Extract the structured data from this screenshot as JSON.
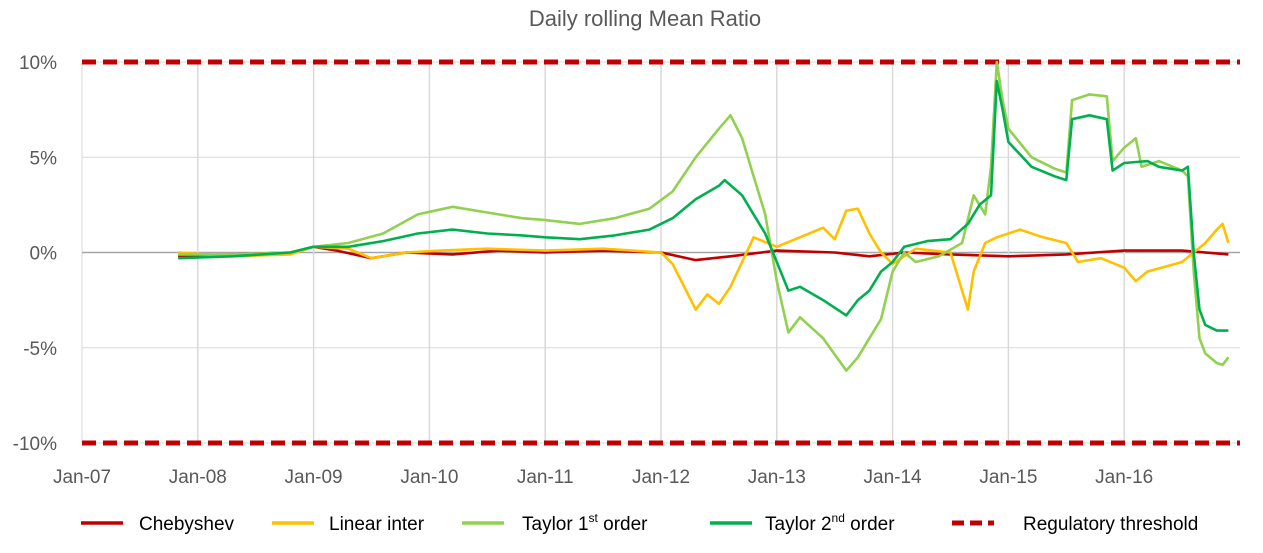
{
  "chart_data": {
    "type": "line",
    "title": "Daily rolling Mean Ratio",
    "xlabel": "",
    "ylabel": "",
    "x_range": [
      2007.0,
      2017.0
    ],
    "ylim": [
      -10,
      10
    ],
    "x_ticks": [
      {
        "label": "Jan-07",
        "value": 2007.0
      },
      {
        "label": "Jan-08",
        "value": 2008.0
      },
      {
        "label": "Jan-09",
        "value": 2009.0
      },
      {
        "label": "Jan-10",
        "value": 2010.0
      },
      {
        "label": "Jan-11",
        "value": 2011.0
      },
      {
        "label": "Jan-12",
        "value": 2012.0
      },
      {
        "label": "Jan-13",
        "value": 2013.0
      },
      {
        "label": "Jan-14",
        "value": 2014.0
      },
      {
        "label": "Jan-15",
        "value": 2015.0
      },
      {
        "label": "Jan-16",
        "value": 2016.0
      }
    ],
    "y_ticks": [
      {
        "label": "10%",
        "value": 10
      },
      {
        "label": "5%",
        "value": 5
      },
      {
        "label": "0%",
        "value": 0
      },
      {
        "label": "-5%",
        "value": -5
      },
      {
        "label": "-10%",
        "value": -10
      }
    ],
    "grid": true,
    "legend_position": "bottom",
    "series": [
      {
        "name": "Chebyshev",
        "color": "#c00000",
        "points": [
          [
            2007.83,
            -0.2
          ],
          [
            2008.3,
            -0.1
          ],
          [
            2008.8,
            0.0
          ],
          [
            2009.0,
            0.3
          ],
          [
            2009.2,
            0.1
          ],
          [
            2009.5,
            -0.3
          ],
          [
            2009.8,
            0.0
          ],
          [
            2010.2,
            -0.1
          ],
          [
            2010.6,
            0.1
          ],
          [
            2011.0,
            0.0
          ],
          [
            2011.5,
            0.1
          ],
          [
            2012.0,
            0.0
          ],
          [
            2012.3,
            -0.4
          ],
          [
            2012.6,
            -0.2
          ],
          [
            2013.0,
            0.1
          ],
          [
            2013.5,
            0.0
          ],
          [
            2013.8,
            -0.2
          ],
          [
            2014.1,
            0.0
          ],
          [
            2014.5,
            -0.1
          ],
          [
            2015.0,
            -0.2
          ],
          [
            2015.5,
            -0.1
          ],
          [
            2016.0,
            0.1
          ],
          [
            2016.5,
            0.1
          ],
          [
            2016.9,
            -0.1
          ]
        ]
      },
      {
        "name": "Linear inter",
        "color": "#ffc000",
        "points": [
          [
            2007.83,
            0.0
          ],
          [
            2008.3,
            -0.2
          ],
          [
            2008.8,
            -0.1
          ],
          [
            2009.0,
            0.3
          ],
          [
            2009.3,
            0.2
          ],
          [
            2009.5,
            -0.3
          ],
          [
            2009.8,
            0.0
          ],
          [
            2010.1,
            0.1
          ],
          [
            2010.5,
            0.2
          ],
          [
            2011.0,
            0.1
          ],
          [
            2011.5,
            0.2
          ],
          [
            2012.0,
            0.0
          ],
          [
            2012.1,
            -0.6
          ],
          [
            2012.2,
            -1.8
          ],
          [
            2012.3,
            -3.0
          ],
          [
            2012.4,
            -2.2
          ],
          [
            2012.5,
            -2.7
          ],
          [
            2012.6,
            -1.8
          ],
          [
            2012.7,
            -0.5
          ],
          [
            2012.8,
            0.8
          ],
          [
            2013.0,
            0.3
          ],
          [
            2013.2,
            0.8
          ],
          [
            2013.4,
            1.3
          ],
          [
            2013.5,
            0.7
          ],
          [
            2013.6,
            2.2
          ],
          [
            2013.7,
            2.3
          ],
          [
            2013.8,
            1.0
          ],
          [
            2013.9,
            0.0
          ],
          [
            2014.0,
            -0.6
          ],
          [
            2014.2,
            0.2
          ],
          [
            2014.5,
            0.0
          ],
          [
            2014.6,
            -2.0
          ],
          [
            2014.65,
            -3.0
          ],
          [
            2014.7,
            -1.0
          ],
          [
            2014.8,
            0.5
          ],
          [
            2014.9,
            0.8
          ],
          [
            2015.0,
            1.0
          ],
          [
            2015.1,
            1.2
          ],
          [
            2015.3,
            0.8
          ],
          [
            2015.5,
            0.5
          ],
          [
            2015.6,
            -0.5
          ],
          [
            2015.8,
            -0.3
          ],
          [
            2016.0,
            -0.8
          ],
          [
            2016.1,
            -1.5
          ],
          [
            2016.2,
            -1.0
          ],
          [
            2016.5,
            -0.5
          ],
          [
            2016.7,
            0.5
          ],
          [
            2016.8,
            1.2
          ],
          [
            2016.85,
            1.5
          ],
          [
            2016.9,
            0.5
          ]
        ]
      },
      {
        "name": "Taylor 1st order",
        "color": "#92d050",
        "points": [
          [
            2007.83,
            -0.1
          ],
          [
            2008.3,
            -0.1
          ],
          [
            2008.8,
            0.0
          ],
          [
            2009.0,
            0.3
          ],
          [
            2009.3,
            0.5
          ],
          [
            2009.6,
            1.0
          ],
          [
            2009.9,
            2.0
          ],
          [
            2010.2,
            2.4
          ],
          [
            2010.5,
            2.1
          ],
          [
            2010.8,
            1.8
          ],
          [
            2011.0,
            1.7
          ],
          [
            2011.3,
            1.5
          ],
          [
            2011.6,
            1.8
          ],
          [
            2011.9,
            2.3
          ],
          [
            2012.1,
            3.2
          ],
          [
            2012.3,
            5.0
          ],
          [
            2012.5,
            6.5
          ],
          [
            2012.6,
            7.2
          ],
          [
            2012.7,
            6.0
          ],
          [
            2012.8,
            4.0
          ],
          [
            2012.9,
            2.0
          ],
          [
            2013.0,
            -1.5
          ],
          [
            2013.1,
            -4.2
          ],
          [
            2013.2,
            -3.4
          ],
          [
            2013.4,
            -4.5
          ],
          [
            2013.6,
            -6.2
          ],
          [
            2013.7,
            -5.5
          ],
          [
            2013.8,
            -4.5
          ],
          [
            2013.9,
            -3.5
          ],
          [
            2014.0,
            -1.0
          ],
          [
            2014.1,
            0.0
          ],
          [
            2014.2,
            -0.5
          ],
          [
            2014.4,
            -0.2
          ],
          [
            2014.6,
            0.5
          ],
          [
            2014.7,
            3.0
          ],
          [
            2014.8,
            2.0
          ],
          [
            2014.85,
            4.5
          ],
          [
            2014.9,
            10.0
          ],
          [
            2014.95,
            8.0
          ],
          [
            2015.0,
            6.5
          ],
          [
            2015.2,
            5.0
          ],
          [
            2015.4,
            4.4
          ],
          [
            2015.5,
            4.2
          ],
          [
            2015.55,
            8.0
          ],
          [
            2015.7,
            8.3
          ],
          [
            2015.85,
            8.2
          ],
          [
            2015.9,
            4.8
          ],
          [
            2016.0,
            5.5
          ],
          [
            2016.1,
            6.0
          ],
          [
            2016.15,
            4.5
          ],
          [
            2016.3,
            4.8
          ],
          [
            2016.5,
            4.3
          ],
          [
            2016.55,
            4.0
          ],
          [
            2016.6,
            -1.0
          ],
          [
            2016.65,
            -4.5
          ],
          [
            2016.7,
            -5.3
          ],
          [
            2016.8,
            -5.8
          ],
          [
            2016.85,
            -5.9
          ],
          [
            2016.9,
            -5.5
          ]
        ]
      },
      {
        "name": "Taylor 2nd order",
        "color": "#00b050",
        "points": [
          [
            2007.83,
            -0.3
          ],
          [
            2008.3,
            -0.2
          ],
          [
            2008.8,
            0.0
          ],
          [
            2009.0,
            0.3
          ],
          [
            2009.3,
            0.3
          ],
          [
            2009.6,
            0.6
          ],
          [
            2009.9,
            1.0
          ],
          [
            2010.2,
            1.2
          ],
          [
            2010.5,
            1.0
          ],
          [
            2010.8,
            0.9
          ],
          [
            2011.0,
            0.8
          ],
          [
            2011.3,
            0.7
          ],
          [
            2011.6,
            0.9
          ],
          [
            2011.9,
            1.2
          ],
          [
            2012.1,
            1.8
          ],
          [
            2012.3,
            2.8
          ],
          [
            2012.5,
            3.5
          ],
          [
            2012.55,
            3.8
          ],
          [
            2012.7,
            3.0
          ],
          [
            2012.8,
            2.0
          ],
          [
            2012.9,
            1.0
          ],
          [
            2013.0,
            -0.5
          ],
          [
            2013.1,
            -2.0
          ],
          [
            2013.2,
            -1.8
          ],
          [
            2013.4,
            -2.5
          ],
          [
            2013.6,
            -3.3
          ],
          [
            2013.7,
            -2.5
          ],
          [
            2013.8,
            -2.0
          ],
          [
            2013.9,
            -1.0
          ],
          [
            2014.0,
            -0.5
          ],
          [
            2014.1,
            0.3
          ],
          [
            2014.3,
            0.6
          ],
          [
            2014.5,
            0.7
          ],
          [
            2014.65,
            1.5
          ],
          [
            2014.75,
            2.5
          ],
          [
            2014.85,
            3.0
          ],
          [
            2014.9,
            9.0
          ],
          [
            2014.95,
            7.5
          ],
          [
            2015.0,
            5.8
          ],
          [
            2015.2,
            4.5
          ],
          [
            2015.4,
            4.0
          ],
          [
            2015.5,
            3.8
          ],
          [
            2015.55,
            7.0
          ],
          [
            2015.7,
            7.2
          ],
          [
            2015.85,
            7.0
          ],
          [
            2015.9,
            4.3
          ],
          [
            2016.0,
            4.7
          ],
          [
            2016.2,
            4.8
          ],
          [
            2016.3,
            4.5
          ],
          [
            2016.5,
            4.3
          ],
          [
            2016.55,
            4.5
          ],
          [
            2016.6,
            0.0
          ],
          [
            2016.65,
            -3.0
          ],
          [
            2016.7,
            -3.8
          ],
          [
            2016.8,
            -4.1
          ],
          [
            2016.9,
            -4.1
          ]
        ]
      },
      {
        "name": "Regulatory threshold",
        "color": "#c00000",
        "dashed": true,
        "points": [
          [
            2007.0,
            10
          ],
          [
            2017.0,
            10
          ]
        ],
        "mirror_points": [
          [
            2007.0,
            -10
          ],
          [
            2017.0,
            -10
          ]
        ]
      }
    ]
  }
}
